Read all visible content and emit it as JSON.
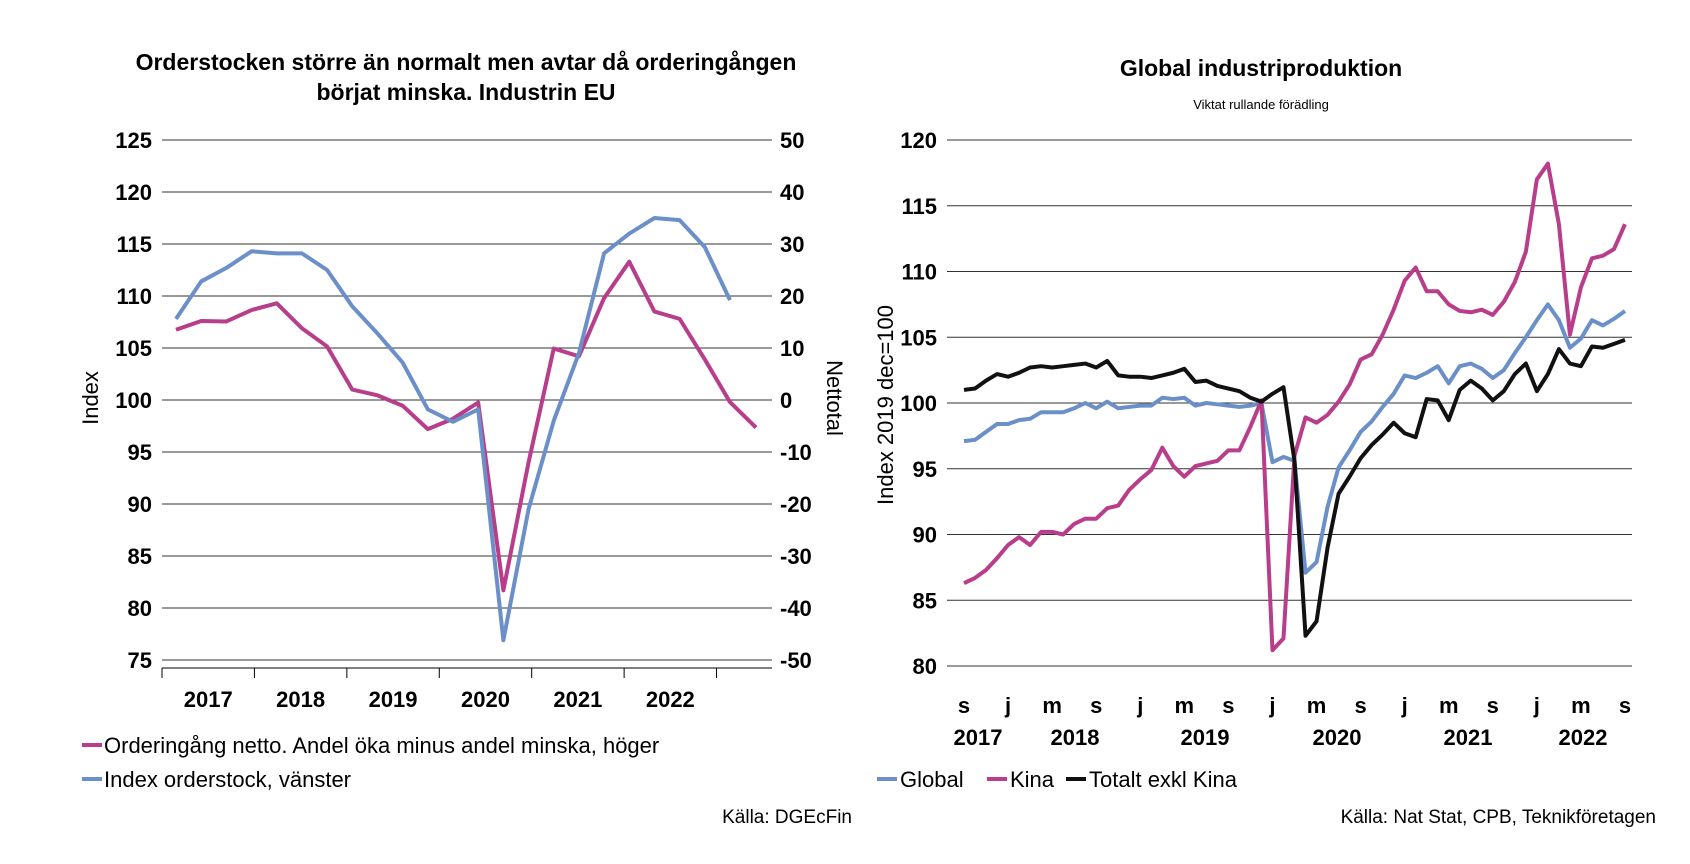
{
  "chart_data": [
    {
      "type": "line",
      "title": "Orderstocken större än normalt men avtar då orderingången",
      "title_line2": "börjat minska. Industrin EU",
      "ylabel": "Index",
      "y2label": "Nettotal",
      "ylim": [
        75,
        125
      ],
      "y2lim": [
        -50,
        50
      ],
      "yticks": [
        "125",
        "120",
        "115",
        "110",
        "105",
        "100",
        "95",
        "90",
        "85",
        "80",
        "75"
      ],
      "y2ticks": [
        "50",
        "40",
        "30",
        "20",
        "10",
        "0",
        "-10",
        "-20",
        "-30",
        "-40",
        "-50"
      ],
      "year_labels": [
        "2017",
        "2018",
        "2019",
        "2020",
        "2021",
        "2022"
      ],
      "grid": true,
      "legend_position": "bottom",
      "source": "Källa: DGEcFin",
      "series": [
        {
          "name": "Orderingång netto. Andel öka minus andel minska, höger",
          "axis": "right",
          "color": "#b83d8b",
          "x": [
            0,
            1,
            2,
            3,
            4,
            5,
            6,
            7,
            8,
            9,
            10,
            11,
            12,
            13,
            14,
            15,
            16,
            17,
            18,
            19,
            20,
            21,
            22
          ],
          "values": [
            13.5,
            15.2,
            15.1,
            17.3,
            18.6,
            13.8,
            10.3,
            2,
            0.9,
            -1.1,
            -5.6,
            -3.6,
            -0.5,
            -36.6,
            -12,
            9.9,
            8.4,
            19.6,
            26.6,
            17,
            15.6,
            7.8,
            -0.4
          ]
        },
        {
          "name": "Index orderstock, vänster",
          "axis": "left",
          "color": "#6b8fc8",
          "x": [
            0,
            1,
            2,
            3,
            4,
            5,
            6,
            7,
            8,
            9,
            10,
            11,
            12,
            13,
            14,
            15,
            16,
            17,
            18,
            19,
            20,
            21,
            22
          ],
          "values": [
            107.8,
            111.4,
            112.7,
            114.3,
            114.1,
            114.1,
            112.5,
            109,
            106.4,
            103.6,
            99.1,
            97.9,
            99.1,
            76.9,
            89.5,
            98,
            104.5,
            114.1,
            116,
            117.5,
            117.3,
            114.7,
            109.6
          ]
        }
      ],
      "series_ext": {
        "right_tail": [
          -5.3
        ]
      }
    },
    {
      "type": "line",
      "title": "Global industriproduktion",
      "subtitle": "Viktat rullande förädling",
      "ylabel": "Index 2019 dec=100",
      "ylim": [
        80,
        120
      ],
      "yticks": [
        "120",
        "115",
        "110",
        "105",
        "100",
        "95",
        "90",
        "85",
        "80"
      ],
      "month_labels": [
        "s",
        "j",
        "m",
        "s",
        "j",
        "m",
        "s",
        "j",
        "m",
        "s",
        "j",
        "m",
        "s",
        "j",
        "m",
        "s"
      ],
      "year_labels": [
        "2017",
        "2018",
        "2019",
        "2020",
        "2021",
        "2022"
      ],
      "grid": true,
      "legend_position": "bottom",
      "source": "Källa: Nat Stat, CPB, Teknikföretagen",
      "series": [
        {
          "name": "Global",
          "color": "#6b8fc8",
          "values": [
            97.1,
            97.2,
            97.8,
            98.4,
            98.4,
            98.7,
            98.8,
            99.3,
            99.3,
            99.3,
            99.6,
            100,
            99.6,
            100.1,
            99.6,
            99.7,
            99.8,
            99.8,
            100.4,
            100.3,
            100.4,
            99.8,
            100,
            99.9,
            99.8,
            99.7,
            99.8,
            100,
            95.5,
            95.9,
            95.6,
            87.1,
            87.9,
            92.1,
            95.1,
            96.4,
            97.8,
            98.6,
            99.7,
            100.7,
            102.1,
            101.9,
            102.3,
            102.8,
            101.5,
            102.8,
            103,
            102.6,
            101.9,
            102.5,
            103.8,
            105,
            106.3,
            107.5,
            106.3,
            104.2,
            104.9,
            106.3,
            105.9,
            106.4,
            107
          ]
        },
        {
          "name": "Kina",
          "color": "#b83d8b",
          "values": [
            86.3,
            86.7,
            87.3,
            88.2,
            89.2,
            89.8,
            89.2,
            90.2,
            90.2,
            90,
            90.8,
            91.2,
            91.2,
            92,
            92.2,
            93.4,
            94.2,
            94.9,
            96.6,
            95.2,
            94.4,
            95.2,
            95.4,
            95.6,
            96.4,
            96.4,
            98.2,
            100.2,
            81.2,
            82.1,
            96,
            98.9,
            98.5,
            99.1,
            100.1,
            101.4,
            103.3,
            103.7,
            105.2,
            107.1,
            109.3,
            110.3,
            108.5,
            108.5,
            107.5,
            107,
            106.9,
            107.1,
            106.7,
            107.7,
            109.2,
            111.5,
            117,
            118.2,
            113.6,
            105.2,
            108.8,
            111,
            111.2,
            111.7,
            113.6
          ]
        },
        {
          "name": "Totalt exkl Kina",
          "color": "#111111",
          "values": [
            101,
            101.1,
            101.7,
            102.2,
            102,
            102.3,
            102.7,
            102.8,
            102.7,
            102.8,
            102.9,
            103,
            102.7,
            103.2,
            102.1,
            102,
            102,
            101.9,
            102.1,
            102.3,
            102.6,
            101.6,
            101.7,
            101.3,
            101.1,
            100.9,
            100.4,
            100.1,
            100.7,
            101.2,
            95.6,
            82.3,
            83.4,
            89,
            93.1,
            94.4,
            95.8,
            96.8,
            97.6,
            98.5,
            97.7,
            97.4,
            100.3,
            100.2,
            98.7,
            101,
            101.7,
            101.1,
            100.2,
            100.9,
            102.2,
            103,
            100.9,
            102.2,
            104.1,
            103,
            102.8,
            104.3,
            104.2,
            104.5,
            104.8
          ]
        }
      ]
    }
  ]
}
